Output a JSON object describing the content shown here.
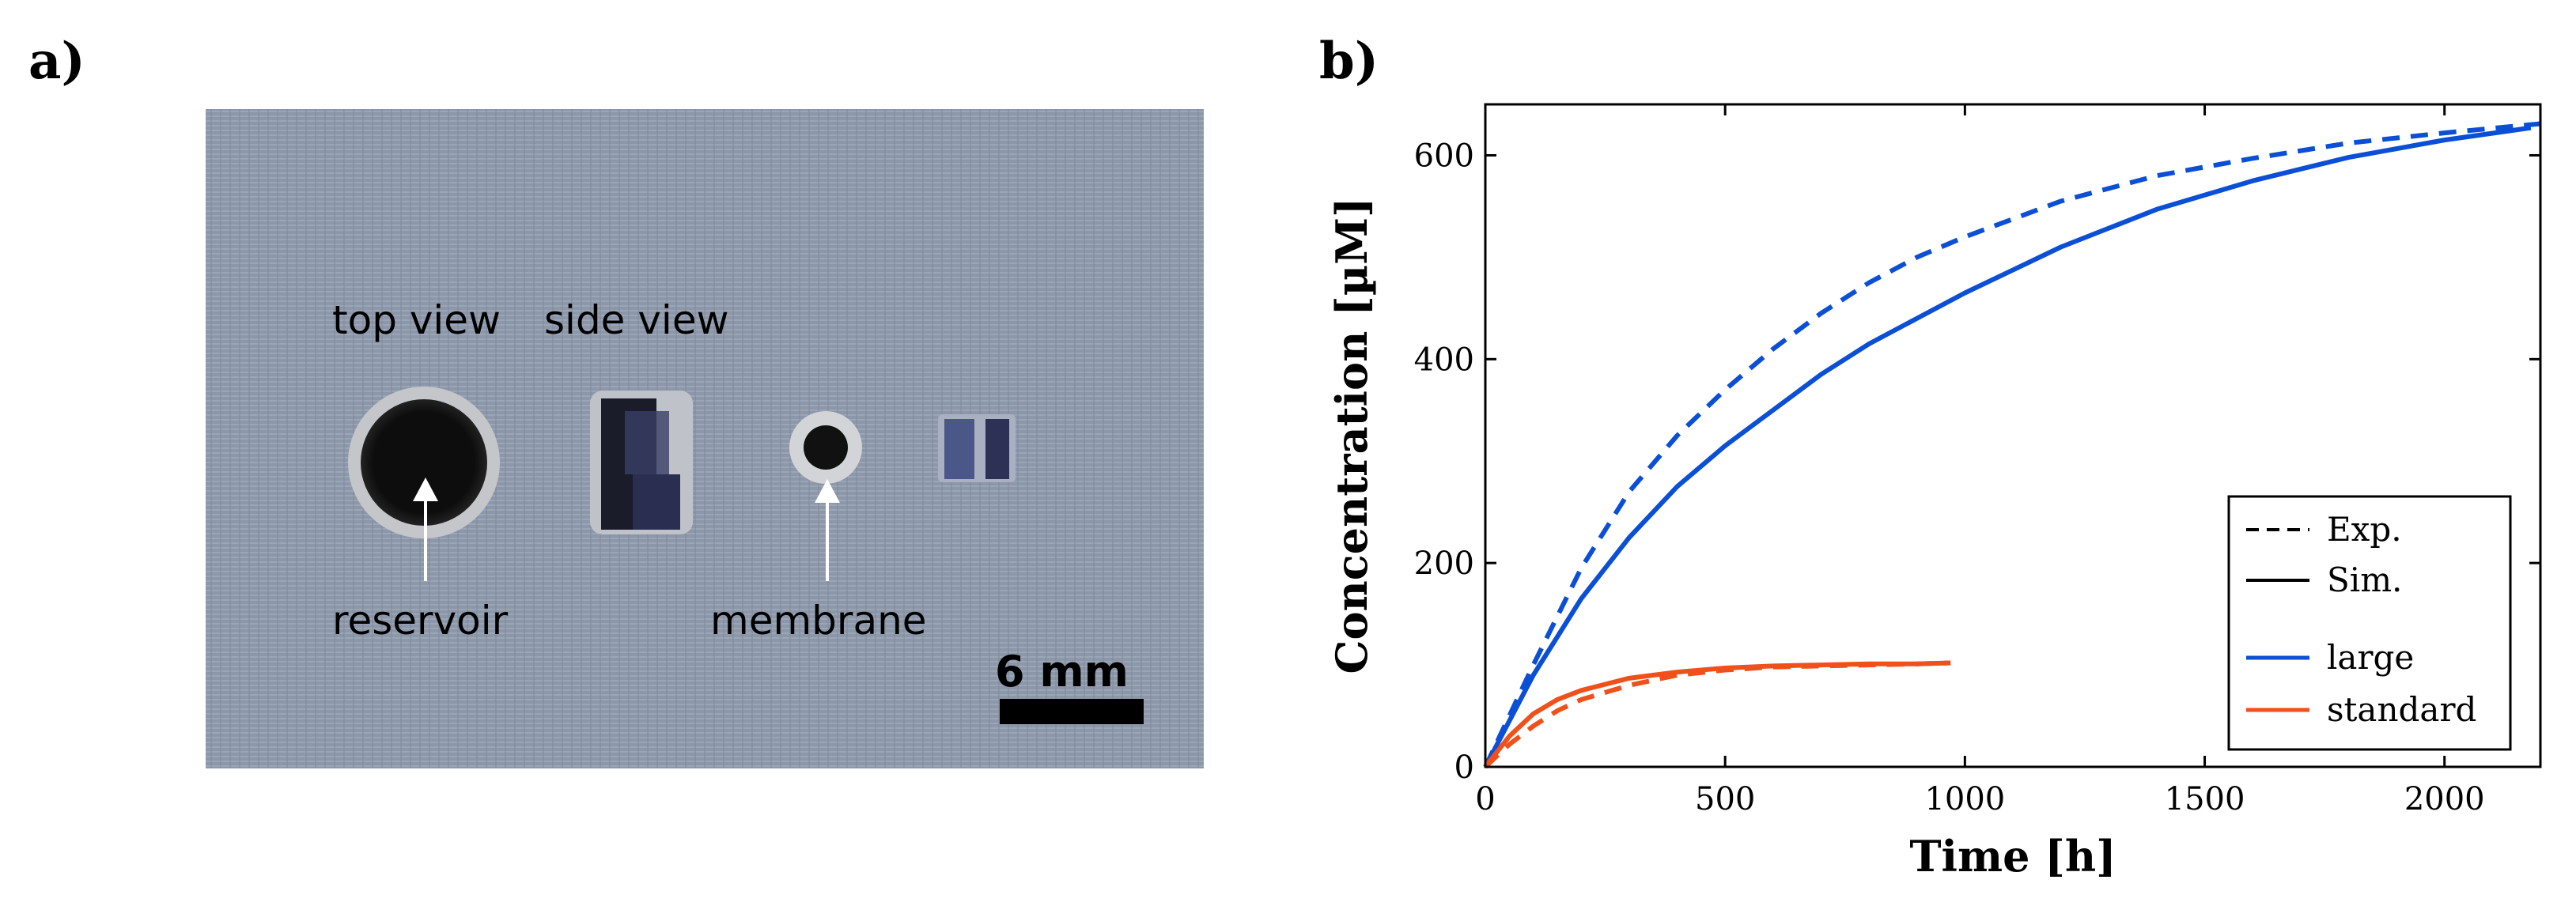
{
  "panels": {
    "a": "a)",
    "b": "b)"
  },
  "photo": {
    "labels": {
      "top_view": "top view",
      "side_view": "side view",
      "reservoir": "reservoir",
      "membrane": "membrane",
      "scale": "6 mm"
    },
    "colors": {
      "background": "#8b96a8",
      "device_dark": "#111111",
      "ring": "#c9cbcf"
    }
  },
  "chart_data": {
    "type": "line",
    "title": "",
    "xlabel": "Time [h]",
    "ylabel": "Concentration [µM]",
    "xlim": [
      0,
      2200
    ],
    "ylim": [
      0,
      650
    ],
    "xticks": [
      0,
      500,
      1000,
      1500,
      2000
    ],
    "yticks": [
      0,
      200,
      400,
      600
    ],
    "grid": false,
    "legend": {
      "placement": "bottom-right",
      "entries": [
        {
          "label": "Exp.",
          "style": "dashed",
          "color": "#000000"
        },
        {
          "label": "Sim.",
          "style": "solid",
          "color": "#000000"
        },
        {
          "label": "large",
          "style": "solid",
          "color": "#0a4fd6"
        },
        {
          "label": "standard",
          "style": "solid",
          "color": "#f0501a"
        }
      ]
    },
    "series": [
      {
        "name": "large Exp.",
        "color": "#0a4fd6",
        "style": "dashed",
        "x": [
          0,
          50,
          100,
          200,
          300,
          400,
          500,
          600,
          700,
          800,
          900,
          1000,
          1200,
          1400,
          1600,
          1800,
          2000,
          2200
        ],
        "y": [
          0,
          50,
          100,
          195,
          270,
          325,
          370,
          410,
          445,
          475,
          500,
          520,
          555,
          580,
          597,
          612,
          622,
          631
        ]
      },
      {
        "name": "large Sim.",
        "color": "#0a4fd6",
        "style": "solid",
        "x": [
          0,
          50,
          100,
          200,
          300,
          400,
          500,
          600,
          700,
          800,
          900,
          1000,
          1200,
          1400,
          1600,
          1800,
          2000,
          2180
        ],
        "y": [
          0,
          45,
          90,
          165,
          225,
          275,
          315,
          350,
          385,
          415,
          440,
          465,
          510,
          547,
          575,
          598,
          615,
          627
        ]
      },
      {
        "name": "standard Exp.",
        "color": "#f0501a",
        "style": "dashed",
        "x": [
          0,
          50,
          100,
          150,
          200,
          300,
          400,
          500,
          600,
          700,
          800,
          900,
          970
        ],
        "y": [
          0,
          22,
          40,
          55,
          66,
          80,
          90,
          95,
          98,
          99,
          100,
          101,
          102
        ]
      },
      {
        "name": "standard Sim.",
        "color": "#f0501a",
        "style": "solid",
        "x": [
          0,
          50,
          100,
          150,
          200,
          300,
          400,
          500,
          600,
          700,
          800,
          900,
          970
        ],
        "y": [
          0,
          30,
          52,
          66,
          75,
          87,
          93,
          97,
          99,
          100,
          101,
          101,
          102
        ]
      }
    ]
  }
}
